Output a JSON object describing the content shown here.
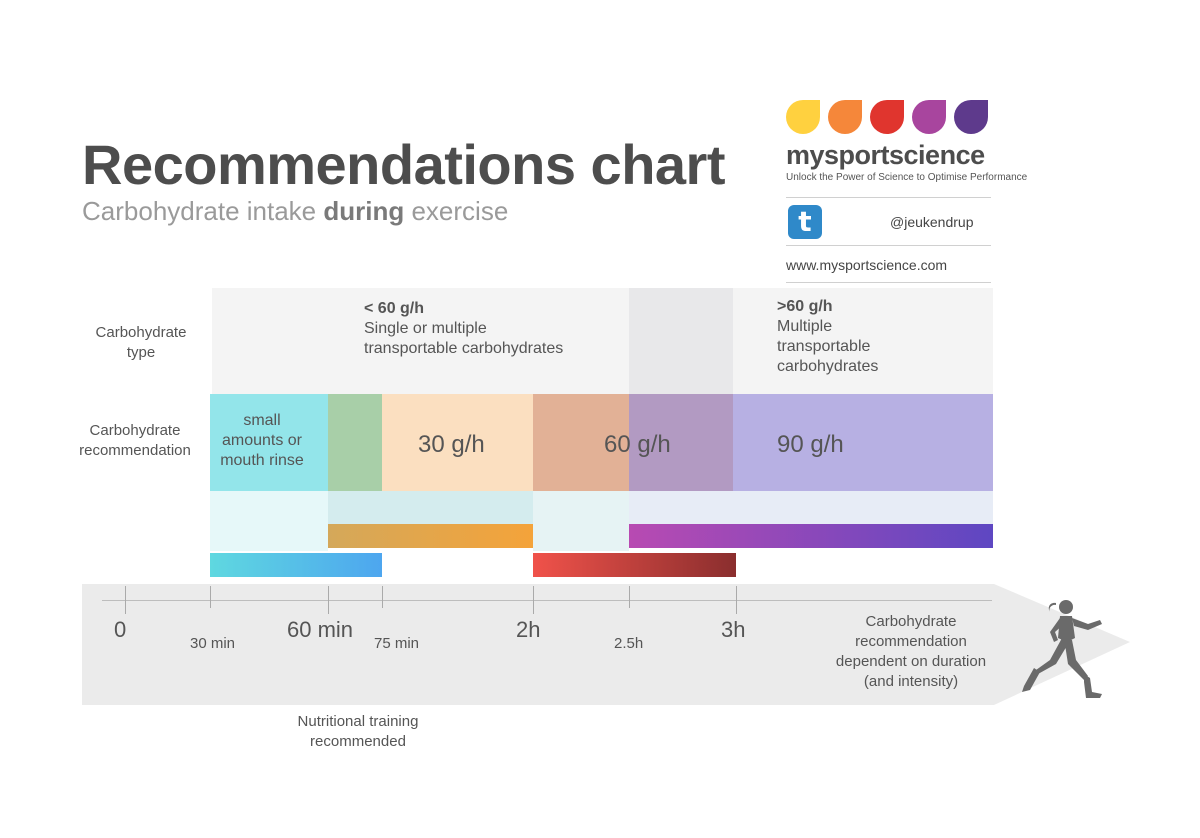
{
  "header": {
    "title": "Recommendations chart",
    "subtitle_pre": "Carbohydrate intake ",
    "subtitle_bold": "during",
    "subtitle_post": " exercise"
  },
  "brand": {
    "name": "mysportscience",
    "tagline": "Unlock the Power of Science to Optimise Performance",
    "twitter_handle": "@jeukendrup",
    "website": "www.mysportscience.com",
    "drop_colors": [
      "#ffd13f",
      "#f5873a",
      "#e0352e",
      "#a8459e",
      "#5e3a8c"
    ]
  },
  "rows": {
    "type_label": "Carbohydrate type",
    "recommendation_label": "Carbohydrate recommendation"
  },
  "type_boxes": {
    "low": {
      "amount": "< 60 g/h",
      "desc": "Single or multiple transportable carbohydrates"
    },
    "high": {
      "amount": ">60 g/h",
      "desc": "Multiple transportable carbohydrates"
    }
  },
  "recommendations": {
    "small": "small amounts or mouth rinse",
    "r30": "30 g/h",
    "r60": "60 g/h",
    "r90": "90 g/h"
  },
  "axis": {
    "major": [
      "0",
      "60 min",
      "2h",
      "3h"
    ],
    "minor": [
      "30 min",
      "75 min",
      "2.5h"
    ]
  },
  "notes": {
    "duration": "Carbohydrate recommendation dependent on duration (and intensity)",
    "training": "Nutritional training recommended"
  },
  "colors": {
    "cyan": "#5fd8e0",
    "green": "#a8cfa8",
    "peach": "#fbd9b3",
    "tan": "#e2b196",
    "mauve": "#b29ac2",
    "lavender": "#b7b0e3",
    "orange": "#f4a33a",
    "purple": "#8845b8",
    "red": "#e8453c"
  }
}
